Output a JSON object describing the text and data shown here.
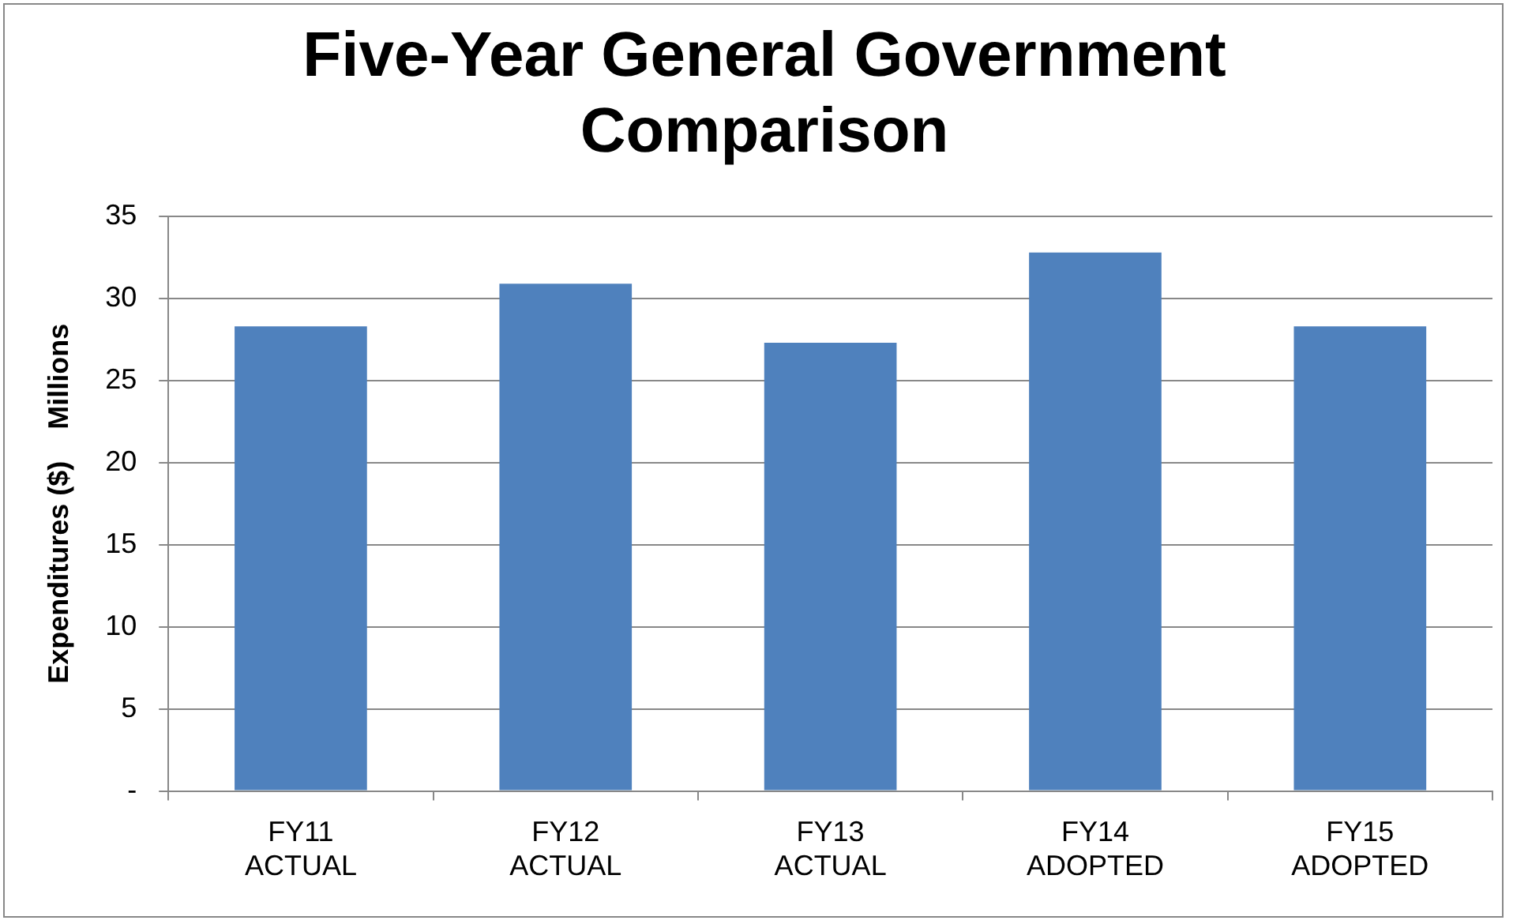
{
  "chart_data": {
    "type": "bar",
    "title": "Five-Year General Government\nComparison",
    "ylabel": "Expenditures ($)    Millions",
    "categories": [
      "FY11\nACTUAL",
      "FY12\nACTUAL",
      "FY13\nACTUAL",
      "FY14\nADOPTED",
      "FY15\nADOPTED"
    ],
    "values": [
      28.3,
      30.9,
      27.3,
      32.8,
      28.3
    ],
    "color": "#4f81bd",
    "ylim": [
      0,
      35
    ],
    "yticks": [
      {
        "value": 0,
        "label": "-"
      },
      5,
      10,
      15,
      20,
      25,
      30,
      35
    ],
    "grid": "y",
    "legend": false
  }
}
